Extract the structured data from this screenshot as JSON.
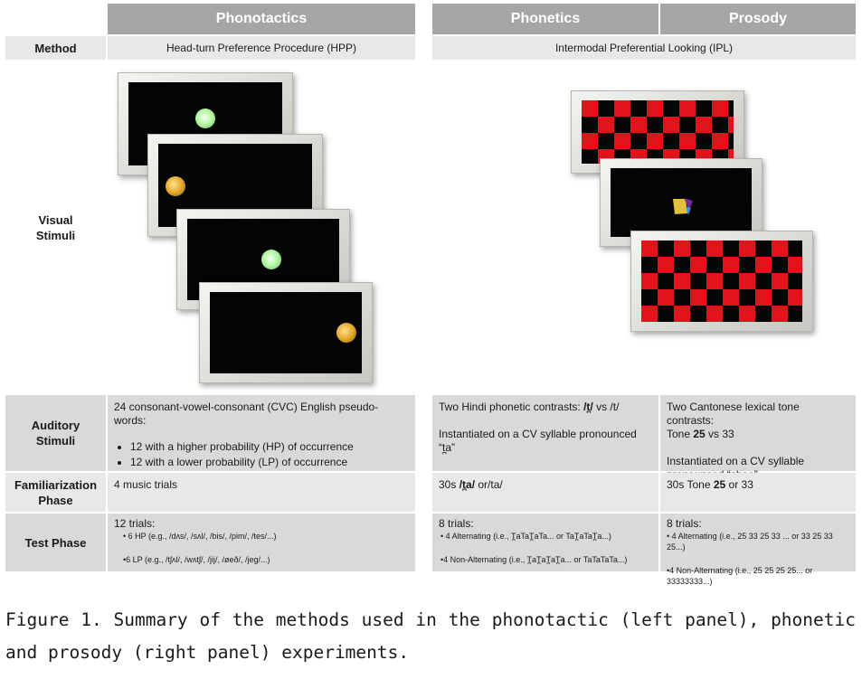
{
  "headers": {
    "phonotactics": "Phonotactics",
    "phonetics": "Phonetics",
    "prosody": "Prosody"
  },
  "method": {
    "label": "Method",
    "phonotactics": "Head-turn Preference Procedure (HPP)",
    "phonetics_prosody": "Intermodal Preferential Looking (IPL)"
  },
  "visual": {
    "label_line1": "Visual",
    "label_line2": "Stimuli"
  },
  "auditory": {
    "label_line1": "Auditory",
    "label_line2": "Stimuli",
    "phonotactics_intro": "24 consonant-vowel-consonant (CVC) English pseudo-words:",
    "phonotactics_items": [
      "12 with a higher probability (HP) of occurrence",
      "12 with a lower probability (LP) of occurrence"
    ],
    "phonetics_line1_prefix": "Two Hindi phonetic contrasts: ",
    "phonetics_line1_bold": "/t̪/",
    "phonetics_line1_suffix": " vs /t/",
    "phonetics_line2": "Instantiated on a CV syllable pronounced",
    "phonetics_line3": "“t̪a”",
    "prosody_line1": "Two Cantonese lexical tone contrasts:",
    "prosody_line2_prefix": "Tone ",
    "prosody_line2_bold": "25",
    "prosody_line2_suffix": " vs 33",
    "prosody_line3": "Instantiated on a CV syllable",
    "prosody_line4": "pronounced “chee”"
  },
  "familiarization": {
    "label_line1": "Familiarization",
    "label_line2": "Phase",
    "phonotactics": "4 music trials",
    "phonetics_prefix": "30s ",
    "phonetics_bold": "/t̪a/",
    "phonetics_suffix": " or/ta/",
    "prosody_prefix": "30s Tone ",
    "prosody_bold": "25",
    "prosody_suffix": " or 33"
  },
  "test": {
    "label": "Test Phase",
    "phonotactics_title": "12 trials:",
    "phonotactics_hp": "• 6 HP (e.g., /dʌs/, /sʌl/, /bis/, /pim/, /tes/...)",
    "phonotactics_lp": "•6 LP (e.g., /tʃʌl/, /wʌtʃ/, /jij/, /øeð/, /jeg/...)",
    "phonetics_title": "8 trials:",
    "phonetics_alt": "• 4 Alternating (i.e., T̪aTaT̪aTa... or TaT̪aTaT̪a...)",
    "phonetics_nonalt": "•4 Non-Alternating (i.e., T̪aT̪aT̪aT̪a... or TaTaTaTa...)",
    "prosody_title": "8 trials:",
    "prosody_alt": "• 4 Alternating  (i.e., 25 33 25 33 ... or 33 25 33 25...)",
    "prosody_nonalt": "•4 Non-Alternating (i.e., 25 25 25 25... or 33333333...)"
  },
  "caption": "Figure 1. Summary of the methods used in the phonotactic (left panel), phonetic and prosody (right panel) experiments.",
  "colors": {
    "header_bg": "#a6a6a6",
    "row_grey": "#d9d9d9",
    "checker_red": "#e3131b",
    "dot_green": "#b8f7a8",
    "dot_gold": "#e0a224"
  }
}
